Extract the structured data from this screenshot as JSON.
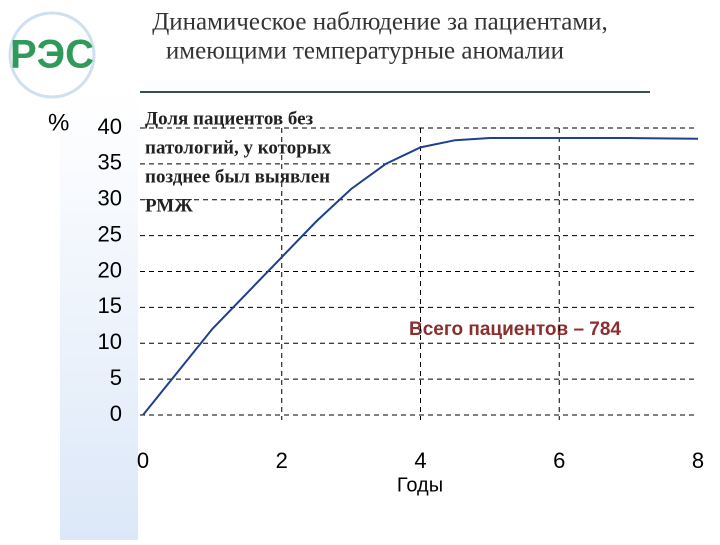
{
  "logo": "РЭС",
  "chart_data": {
    "type": "line",
    "title_lines": [
      "Динамическое наблюдение за пациентами,",
      "имеющими температурные аномалии"
    ],
    "y_label": "%",
    "x_label": "Годы",
    "annotation_lines": [
      "Доля пациентов без",
      "патологий, у которых",
      "позднее  был выявлен",
      "РМЖ"
    ],
    "note": "Всего пациентов – 784",
    "x": [
      0,
      0.5,
      1,
      1.5,
      2,
      2.5,
      3,
      3.5,
      4,
      4.5,
      5,
      6,
      7,
      8
    ],
    "series": [
      {
        "name": "Доля пациентов без патологий",
        "color": "#1f3f8f",
        "values": [
          0,
          6,
          12,
          17,
          22,
          27,
          31.5,
          35,
          37.3,
          38.3,
          38.6,
          38.6,
          38.6,
          38.5
        ]
      }
    ],
    "xlim": [
      0,
      8
    ],
    "xticks": [
      0,
      2,
      4,
      6,
      8
    ],
    "ylim": [
      0,
      40
    ],
    "yticks": [
      0,
      5,
      10,
      15,
      20,
      25,
      30,
      35,
      40
    ],
    "grid": true
  }
}
